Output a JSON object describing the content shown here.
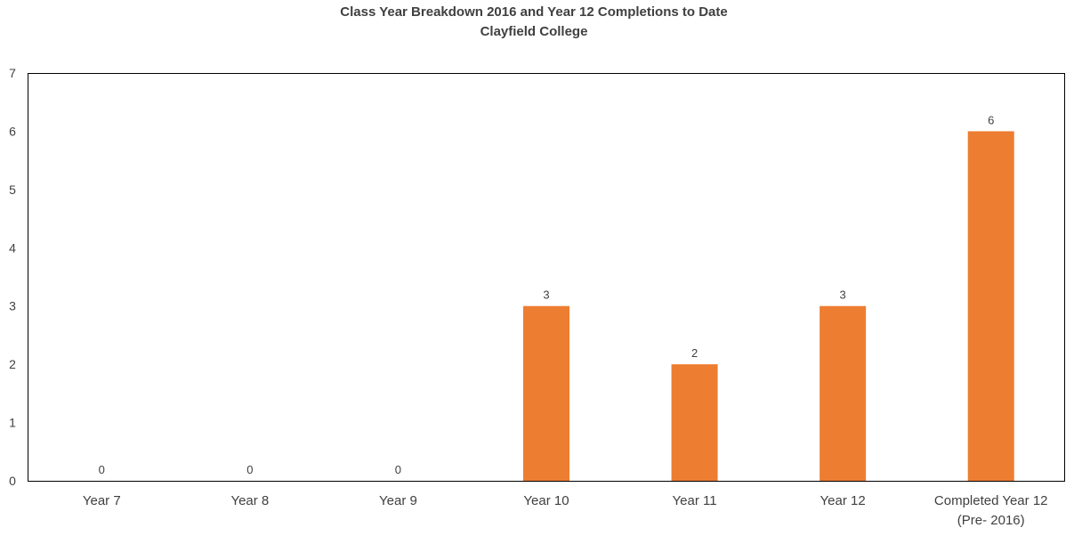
{
  "chart_data": {
    "type": "bar",
    "title": "Class Year Breakdown 2016 and Year 12 Completions to Date",
    "subtitle": "Clayfield College",
    "categories": [
      "Year 7",
      "Year 8",
      "Year 9",
      "Year 10",
      "Year 11",
      "Year 12",
      "Completed Year 12 (Pre- 2016)"
    ],
    "category_lines": [
      [
        "Year 7"
      ],
      [
        "Year 8"
      ],
      [
        "Year 9"
      ],
      [
        "Year 10"
      ],
      [
        "Year 11"
      ],
      [
        "Year 12"
      ],
      [
        "Completed Year 12",
        "(Pre- 2016)"
      ]
    ],
    "values": [
      0,
      0,
      0,
      3,
      2,
      3,
      6
    ],
    "ylim": [
      0,
      7
    ],
    "yticks": [
      0,
      1,
      2,
      3,
      4,
      5,
      6,
      7
    ],
    "xlabel": "",
    "ylabel": "",
    "grid": false,
    "legend": "none",
    "data_labels": true,
    "bar_color": "#ED7D31",
    "axis_color": "#000000",
    "text_color": "#404040"
  }
}
